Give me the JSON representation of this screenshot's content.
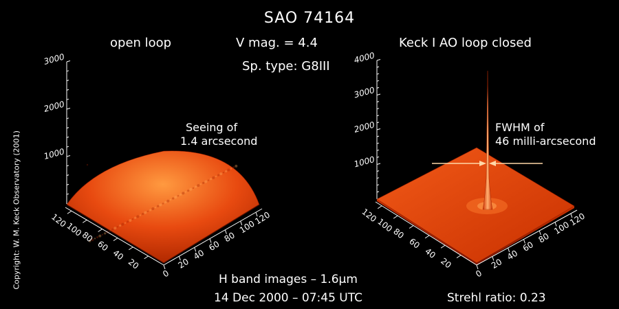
{
  "title": "SAO 74164",
  "star_info": {
    "vmag": "V mag. = 4.4",
    "sptype": "Sp. type: G8III"
  },
  "left": {
    "subtitle": "open loop",
    "annotation_line1": "Seeing of",
    "annotation_line2": "1.4 arcsecond"
  },
  "right": {
    "subtitle": "Keck I AO loop closed",
    "annotation_line1": "FWHM of",
    "annotation_line2": "46 milli-arcsecond"
  },
  "bottom": {
    "line1_pre": "H band images – 1.6",
    "line1_mu": "μ",
    "line1_post": "m",
    "line2": "14 Dec 2000 – 07:45 UTC",
    "strehl": "Strehl ratio: 0.23"
  },
  "copyright": "Copyright: W. M. Keck Observatory (2001)",
  "colors": {
    "background": "#000000",
    "surface_dark": "#8b1a00",
    "surface_mid": "#e84a10",
    "surface_light": "#ff9a40",
    "arrow": "#ffd8a8"
  },
  "chart_data": [
    {
      "type": "surface",
      "panel": "open loop",
      "z_ticks": [
        "1000",
        "2000",
        "3000"
      ],
      "zlim": [
        0,
        3000
      ],
      "x_ticks": [
        "0",
        "20",
        "40",
        "60",
        "80",
        "100",
        "120"
      ],
      "y_ticks": [
        "20",
        "40",
        "60",
        "80",
        "100",
        "120"
      ],
      "xlim": [
        0,
        128
      ],
      "ylim": [
        0,
        128
      ],
      "peak": 950,
      "profile_fwhm_arcsec": 1.4
    },
    {
      "type": "surface",
      "panel": "Keck I AO loop closed",
      "z_ticks": [
        "1000",
        "2000",
        "3000",
        "4000"
      ],
      "zlim": [
        0,
        4000
      ],
      "x_ticks": [
        "0",
        "20",
        "40",
        "60",
        "80",
        "100",
        "120"
      ],
      "y_ticks": [
        "20",
        "40",
        "60",
        "80",
        "100",
        "120"
      ],
      "xlim": [
        0,
        128
      ],
      "ylim": [
        0,
        128
      ],
      "peak": 3700,
      "profile_fwhm_mas": 46
    }
  ]
}
